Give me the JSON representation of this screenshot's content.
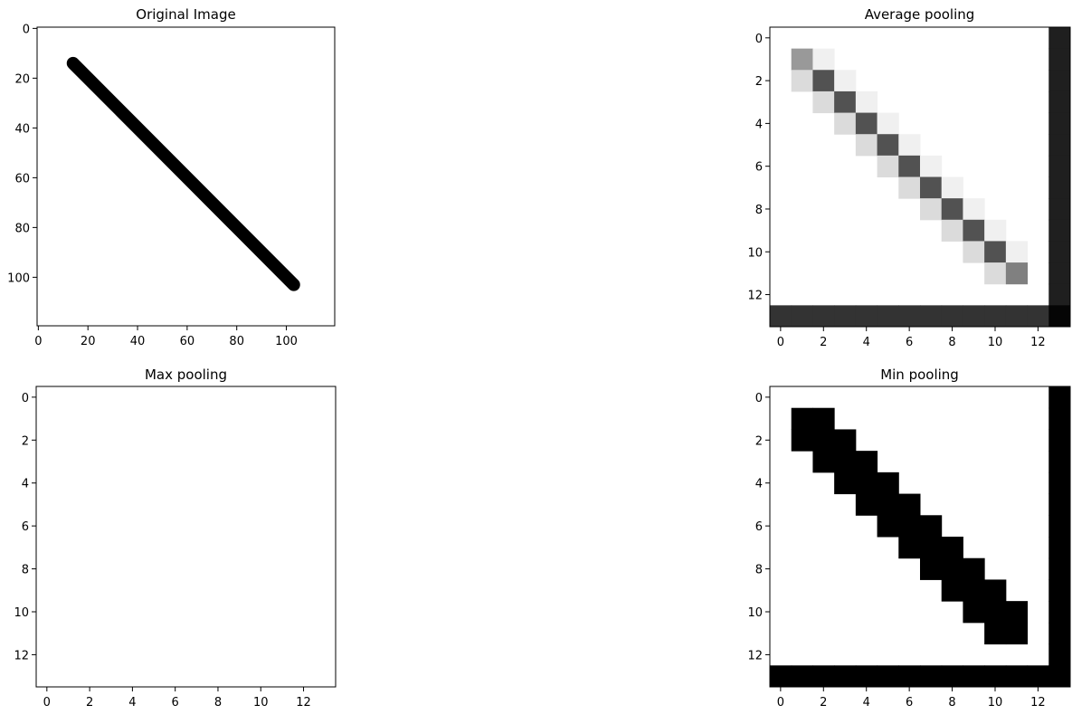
{
  "colors": {
    "background": "#ffffff",
    "axes": "#000000",
    "ink": "#000000"
  },
  "chart_data": [
    {
      "type": "heatmap",
      "title": "Original Image",
      "colormap": "gray",
      "size": 120,
      "xlim": [
        -0.5,
        119.5
      ],
      "ylim": [
        119.5,
        -0.5
      ],
      "xticks": [
        0,
        20,
        40,
        60,
        80,
        100
      ],
      "yticks": [
        0,
        20,
        40,
        60,
        80,
        100
      ],
      "line_segment": {
        "from": [
          14,
          14
        ],
        "to": [
          103,
          103
        ],
        "value": 0,
        "background": 1
      }
    },
    {
      "type": "heatmap",
      "title": "Average pooling",
      "colormap": "gray",
      "size": 14,
      "xlim": [
        -0.5,
        13.5
      ],
      "ylim": [
        13.5,
        -0.5
      ],
      "xticks": [
        0,
        2,
        4,
        6,
        8,
        10,
        12
      ],
      "yticks": [
        0,
        2,
        4,
        6,
        8,
        10,
        12
      ],
      "default": 1,
      "cells": [
        {
          "r": 1,
          "c": 1,
          "v": 0.6
        },
        {
          "r": 1,
          "c": 2,
          "v": 0.94
        },
        {
          "r": 2,
          "c": 1,
          "v": 0.86
        },
        {
          "r": 2,
          "c": 2,
          "v": 0.32
        },
        {
          "r": 2,
          "c": 3,
          "v": 0.94
        },
        {
          "r": 3,
          "c": 2,
          "v": 0.86
        },
        {
          "r": 3,
          "c": 3,
          "v": 0.32
        },
        {
          "r": 3,
          "c": 4,
          "v": 0.94
        },
        {
          "r": 4,
          "c": 3,
          "v": 0.86
        },
        {
          "r": 4,
          "c": 4,
          "v": 0.32
        },
        {
          "r": 4,
          "c": 5,
          "v": 0.94
        },
        {
          "r": 5,
          "c": 4,
          "v": 0.86
        },
        {
          "r": 5,
          "c": 5,
          "v": 0.32
        },
        {
          "r": 5,
          "c": 6,
          "v": 0.94
        },
        {
          "r": 6,
          "c": 5,
          "v": 0.86
        },
        {
          "r": 6,
          "c": 6,
          "v": 0.32
        },
        {
          "r": 6,
          "c": 7,
          "v": 0.94
        },
        {
          "r": 7,
          "c": 6,
          "v": 0.86
        },
        {
          "r": 7,
          "c": 7,
          "v": 0.32
        },
        {
          "r": 7,
          "c": 8,
          "v": 0.94
        },
        {
          "r": 8,
          "c": 7,
          "v": 0.86
        },
        {
          "r": 8,
          "c": 8,
          "v": 0.32
        },
        {
          "r": 8,
          "c": 9,
          "v": 0.94
        },
        {
          "r": 9,
          "c": 8,
          "v": 0.86
        },
        {
          "r": 9,
          "c": 9,
          "v": 0.32
        },
        {
          "r": 9,
          "c": 10,
          "v": 0.94
        },
        {
          "r": 10,
          "c": 9,
          "v": 0.86
        },
        {
          "r": 10,
          "c": 10,
          "v": 0.32
        },
        {
          "r": 10,
          "c": 11,
          "v": 0.94
        },
        {
          "r": 11,
          "c": 10,
          "v": 0.86
        },
        {
          "r": 11,
          "c": 11,
          "v": 0.5
        }
      ],
      "last_row_value": 0.2,
      "last_col_value": 0.12,
      "corner_value": 0.02
    },
    {
      "type": "heatmap",
      "title": "Max pooling",
      "colormap": "gray",
      "size": 14,
      "xlim": [
        -0.5,
        13.5
      ],
      "ylim": [
        13.5,
        -0.5
      ],
      "xticks": [
        0,
        2,
        4,
        6,
        8,
        10,
        12
      ],
      "yticks": [
        0,
        2,
        4,
        6,
        8,
        10,
        12
      ],
      "default": 1,
      "cells": []
    },
    {
      "type": "heatmap",
      "title": "Min pooling",
      "colormap": "gray",
      "size": 14,
      "xlim": [
        -0.5,
        13.5
      ],
      "ylim": [
        13.5,
        -0.5
      ],
      "xticks": [
        0,
        2,
        4,
        6,
        8,
        10,
        12
      ],
      "yticks": [
        0,
        2,
        4,
        6,
        8,
        10,
        12
      ],
      "default": 1,
      "cells": [
        {
          "r": 1,
          "c": 1,
          "v": 0
        },
        {
          "r": 1,
          "c": 2,
          "v": 0
        },
        {
          "r": 2,
          "c": 1,
          "v": 0
        },
        {
          "r": 2,
          "c": 2,
          "v": 0
        },
        {
          "r": 2,
          "c": 3,
          "v": 0
        },
        {
          "r": 3,
          "c": 2,
          "v": 0
        },
        {
          "r": 3,
          "c": 3,
          "v": 0
        },
        {
          "r": 3,
          "c": 4,
          "v": 0
        },
        {
          "r": 4,
          "c": 3,
          "v": 0
        },
        {
          "r": 4,
          "c": 4,
          "v": 0
        },
        {
          "r": 4,
          "c": 5,
          "v": 0
        },
        {
          "r": 5,
          "c": 4,
          "v": 0
        },
        {
          "r": 5,
          "c": 5,
          "v": 0
        },
        {
          "r": 5,
          "c": 6,
          "v": 0
        },
        {
          "r": 6,
          "c": 5,
          "v": 0
        },
        {
          "r": 6,
          "c": 6,
          "v": 0
        },
        {
          "r": 6,
          "c": 7,
          "v": 0
        },
        {
          "r": 7,
          "c": 6,
          "v": 0
        },
        {
          "r": 7,
          "c": 7,
          "v": 0
        },
        {
          "r": 7,
          "c": 8,
          "v": 0
        },
        {
          "r": 8,
          "c": 7,
          "v": 0
        },
        {
          "r": 8,
          "c": 8,
          "v": 0
        },
        {
          "r": 8,
          "c": 9,
          "v": 0
        },
        {
          "r": 9,
          "c": 8,
          "v": 0
        },
        {
          "r": 9,
          "c": 9,
          "v": 0
        },
        {
          "r": 9,
          "c": 10,
          "v": 0
        },
        {
          "r": 10,
          "c": 9,
          "v": 0
        },
        {
          "r": 10,
          "c": 10,
          "v": 0
        },
        {
          "r": 10,
          "c": 11,
          "v": 0
        },
        {
          "r": 11,
          "c": 10,
          "v": 0
        },
        {
          "r": 11,
          "c": 11,
          "v": 0
        }
      ],
      "last_row_value": 0,
      "last_col_value": 0,
      "corner_value": 0
    }
  ]
}
